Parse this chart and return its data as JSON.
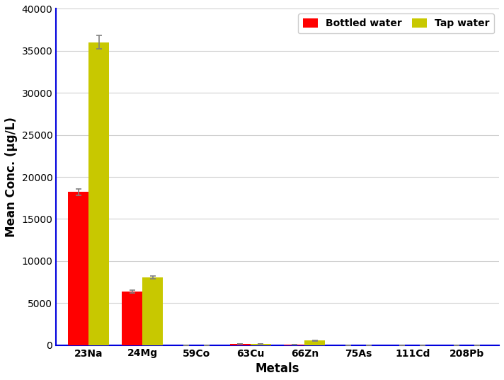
{
  "categories": [
    "23Na",
    "24Mg",
    "59Co",
    "63Cu",
    "66Zn",
    "75As",
    "111Cd",
    "208Pb"
  ],
  "bottled_water": [
    18200,
    6350,
    0,
    120,
    60,
    0,
    0,
    0
  ],
  "tap_water": [
    36000,
    8050,
    0,
    140,
    530,
    0,
    0,
    0
  ],
  "bottled_water_err": [
    400,
    150,
    0,
    8,
    8,
    0,
    0,
    0
  ],
  "tap_water_err": [
    800,
    200,
    0,
    8,
    70,
    0,
    0,
    0
  ],
  "bottled_color": "#ff0000",
  "tap_color": "#c8c800",
  "xlabel": "Metals",
  "ylabel": "Mean Conc. (μg/L)",
  "ylim": [
    0,
    40000
  ],
  "yticks": [
    0,
    5000,
    10000,
    15000,
    20000,
    25000,
    30000,
    35000,
    40000
  ],
  "legend_bottled": "Bottled water",
  "legend_tap": "Tap water",
  "bar_width": 0.38,
  "axis_fontsize": 12,
  "tick_fontsize": 10,
  "legend_fontsize": 10,
  "spine_color": "#0000dd",
  "grid_color": "#d0d0d0",
  "bg_color": "#ffffff"
}
